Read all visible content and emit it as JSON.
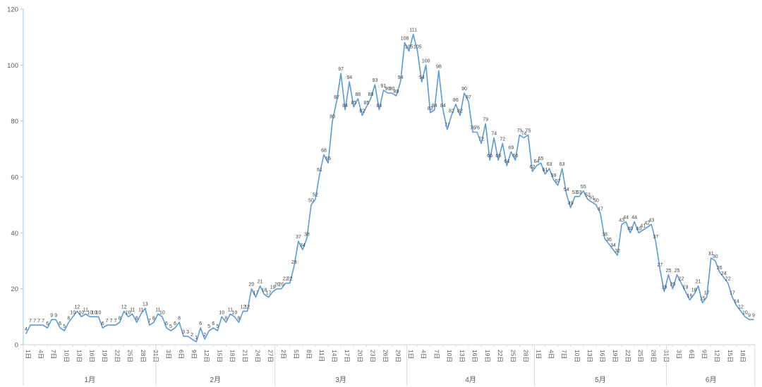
{
  "chart_data": {
    "type": "line",
    "title": "",
    "legend_position": "none",
    "grid": false,
    "data_labels_shown": true,
    "colors": {
      "line": "#5B9BD5",
      "data_label": "#404040",
      "axis_text": "#595959",
      "y_axis_line": "#9DC3E6",
      "x_axis_line": "#C6D4E2",
      "separator": "#D9D9D9"
    },
    "y_axis": {
      "min": 0,
      "max": 120,
      "step": 20,
      "tick_labels": [
        "0",
        "20",
        "40",
        "60",
        "80",
        "100",
        "120"
      ]
    },
    "x_axis": {
      "day_suffix": "日",
      "months": [
        {
          "label": "1月",
          "num_points": 31,
          "tick_labels": [
            "1日",
            "4日",
            "7日",
            "10日",
            "13日",
            "16日",
            "19日",
            "22日",
            "25日",
            "28日",
            "31日"
          ],
          "values": [
            4,
            7,
            7,
            7,
            7,
            6,
            9,
            9,
            6,
            5,
            8,
            10,
            12,
            10,
            11,
            10,
            10,
            10,
            6,
            7,
            7,
            7,
            8,
            12,
            10,
            11,
            8,
            11,
            13,
            7,
            8
          ]
        },
        {
          "label": "2月",
          "num_points": 28,
          "tick_labels": [
            "3日",
            "6日",
            "9日",
            "12日",
            "15日",
            "18日",
            "21日",
            "24日",
            "27日"
          ],
          "values": [
            11,
            10,
            6,
            5,
            6,
            8,
            3,
            3,
            2,
            1,
            6,
            2,
            5,
            6,
            5,
            10,
            8,
            11,
            10,
            8,
            12,
            12,
            20,
            17,
            21,
            18,
            17,
            19
          ]
        },
        {
          "label": "3月",
          "num_points": 31,
          "tick_labels": [
            "2日",
            "5日",
            "8日",
            "11日",
            "14日",
            "17日",
            "20日",
            "23日",
            "26日",
            "29日"
          ],
          "values": [
            20,
            20,
            22,
            22,
            28,
            37,
            34,
            38,
            50,
            52,
            61,
            68,
            65,
            80,
            87,
            97,
            84,
            94,
            85,
            88,
            82,
            85,
            88,
            93,
            84,
            91,
            90,
            90,
            89,
            94,
            108
          ]
        },
        {
          "label": "4月",
          "num_points": 30,
          "tick_labels": [
            "1日",
            "4日",
            "7日",
            "10日",
            "13日",
            "16日",
            "19日",
            "22日",
            "25日",
            "28日"
          ],
          "values": [
            105,
            111,
            105,
            94,
            100,
            83,
            84,
            98,
            84,
            77,
            82,
            86,
            82,
            90,
            87,
            76,
            76,
            72,
            79,
            66,
            74,
            66,
            72,
            64,
            69,
            66,
            75,
            74,
            75,
            62
          ]
        },
        {
          "label": "5月",
          "num_points": 31,
          "tick_labels": [
            "1日",
            "4日",
            "7日",
            "10日",
            "13日",
            "16日",
            "19日",
            "22日",
            "25日",
            "28日",
            "31日"
          ],
          "values": [
            64,
            65,
            61,
            63,
            59,
            57,
            63,
            54,
            49,
            53,
            53,
            55,
            52,
            51,
            50,
            47,
            38,
            36,
            34,
            32,
            43,
            44,
            40,
            44,
            40,
            41,
            42,
            43,
            37,
            27,
            19
          ]
        },
        {
          "label": "6月",
          "num_points": 21,
          "tick_labels": [
            "3日",
            "6日",
            "9日",
            "12日",
            "15日",
            "18日"
          ],
          "values": [
            25,
            20,
            25,
            22,
            19,
            16,
            18,
            21,
            15,
            17,
            31,
            30,
            26,
            24,
            22,
            17,
            14,
            12,
            10,
            9,
            9
          ]
        }
      ]
    }
  }
}
